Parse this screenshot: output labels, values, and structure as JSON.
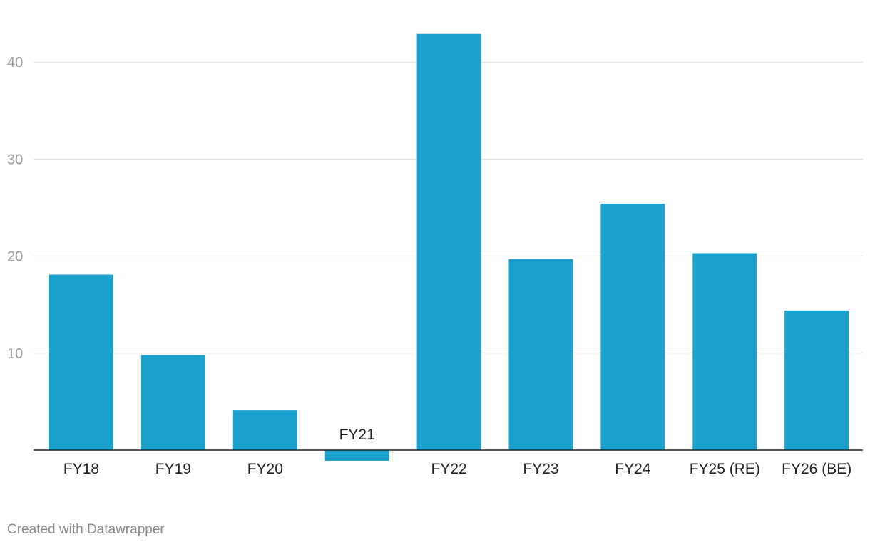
{
  "chart_data": {
    "type": "bar",
    "categories": [
      "FY18",
      "FY19",
      "FY20",
      "FY21",
      "FY22",
      "FY23",
      "FY24",
      "FY25 (RE)",
      "FY26 (BE)"
    ],
    "values": [
      18.1,
      9.8,
      4.1,
      -1.1,
      42.9,
      19.7,
      25.4,
      20.3,
      14.4
    ],
    "title": "",
    "xlabel": "",
    "ylabel": "",
    "ylim": [
      0,
      45
    ],
    "yticks": [
      10,
      20,
      30,
      40
    ],
    "grid": true,
    "legend": "none"
  },
  "colors": {
    "bar": "#1aa1cd",
    "grid": "#dddddd",
    "baseline": "#222222"
  },
  "footer": {
    "credit": "Created with Datawrapper"
  }
}
